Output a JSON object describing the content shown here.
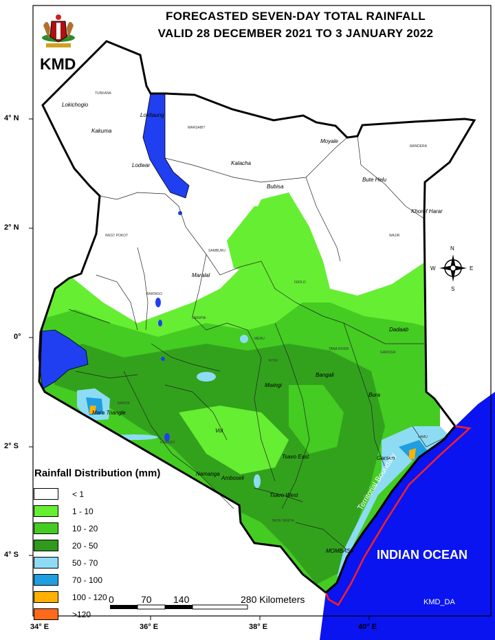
{
  "header": {
    "title_line1": "FORECASTED SEVEN-DAY TOTAL RAINFALL",
    "title_line2": "VALID  28  DECEMBER 2021 TO 3 JANUARY 2022",
    "agency": "KMD"
  },
  "legend": {
    "title": "Rainfall Distribution (mm)",
    "items": [
      {
        "label": "< 1",
        "color": "#ffffff"
      },
      {
        "label": "1 - 10",
        "color": "#66ee33"
      },
      {
        "label": "10 - 20",
        "color": "#44cc22"
      },
      {
        "label": "20 - 50",
        "color": "#2f9a1c"
      },
      {
        "label": "50 - 70",
        "color": "#8edcf4"
      },
      {
        "label": "70 - 100",
        "color": "#1f9ee0"
      },
      {
        "label": "100 - 120",
        "color": "#ffb000"
      },
      {
        "label": ">120",
        "color": "#ff6a1a"
      }
    ]
  },
  "scale_bar": {
    "labels": [
      "0",
      "70",
      "140",
      "280 Kilometers"
    ]
  },
  "axes": {
    "lon_labels": [
      "34° E",
      "36° E",
      "38° E",
      "40° E"
    ],
    "lat_labels": [
      "4° N",
      "2° N",
      "0°",
      "2° S",
      "4° S"
    ]
  },
  "places": {
    "lokichogio": "Lokichogio",
    "lokitaung": "Lokitaung",
    "kakuma": "Kakuma",
    "lodwar": "Lodwar",
    "moyale": "Moyale",
    "kalacha": "Kalacha",
    "bubisa": "Bubisa",
    "bute_helu": "Bute Helu",
    "khorof_harar": "Khorof Harar",
    "maralal": "Maralal",
    "dadaab": "Dadaab",
    "mwingi": "Mwingi",
    "bangali": "Bangali",
    "bura": "Bura",
    "garsen": "Garsen",
    "mara_triangle": "Mara Triangle",
    "voi": "Voi",
    "tsavo_east": "Tsavo East",
    "tsavo_west": "Tsavo West",
    "namanga": "Namanga",
    "amboseli": "Amboseli",
    "mombasa": "MOMBASA"
  },
  "regions": {
    "turkana": "TURKANA",
    "marsabit": "MARSABIT",
    "mandera": "MANDERA",
    "wajir": "WAJIR",
    "west_pokot": "WEST POKOT",
    "samburu": "SAMBURU",
    "isiolo": "ISIOLO",
    "garissa": "GARISSA",
    "tana_river": "TANA RIVER",
    "kitui": "KITUI",
    "taita_taveta": "TAITA TAVETA",
    "narok": "NAROK",
    "kajiado": "KAJIADO",
    "baringo": "BARINGO",
    "laikipia": "LAIKIPIA",
    "meru": "MERU",
    "lamu": "LAMU"
  },
  "compass": {
    "n": "N",
    "s": "S",
    "e": "E",
    "w": "W"
  },
  "ocean_label": "INDIAN OCEAN",
  "boundary_label": "Territorial Boundary",
  "credit": "KMD_DA",
  "colors": {
    "ocean": "#0a14f0",
    "boundary": "#000000",
    "territorial_line": "#ff2020",
    "lake": "#1f3ff0"
  }
}
